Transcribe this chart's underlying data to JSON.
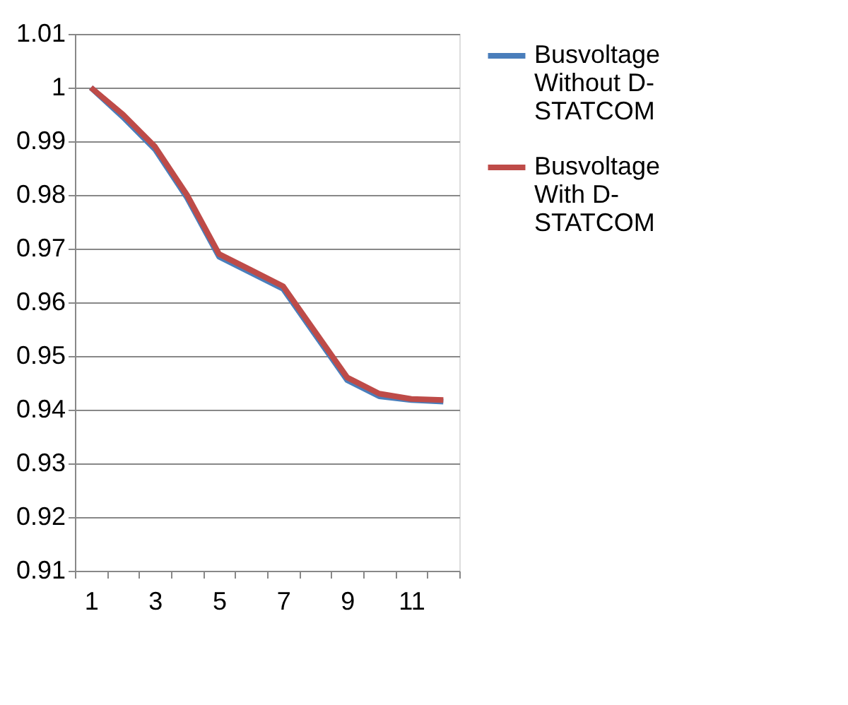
{
  "chart_data": {
    "type": "line",
    "categories": [
      "1",
      null,
      "3",
      null,
      "5",
      null,
      "7",
      null,
      "9",
      null,
      "11",
      null
    ],
    "series": [
      {
        "name": "Busvoltage Without D-STATCOM",
        "color": "#4a7ebb",
        "values": [
          1.0,
          0.9945,
          0.9885,
          0.9795,
          0.9685,
          0.9655,
          0.9625,
          0.954,
          0.9455,
          0.9425,
          0.9418,
          0.9415
        ]
      },
      {
        "name": "Busvoltage With D-STATCOM",
        "color": "#be4b48",
        "values": [
          1.0,
          0.995,
          0.989,
          0.98,
          0.969,
          0.966,
          0.963,
          0.9545,
          0.946,
          0.943,
          0.942,
          0.9418
        ]
      }
    ],
    "ylim": [
      0.91,
      1.01
    ],
    "yticks": [
      0.91,
      0.92,
      0.93,
      0.94,
      0.95,
      0.96,
      0.97,
      0.98,
      0.99,
      1,
      1.01
    ],
    "grid": "y",
    "legend": "right",
    "marker": "none",
    "line_style": "solid"
  }
}
